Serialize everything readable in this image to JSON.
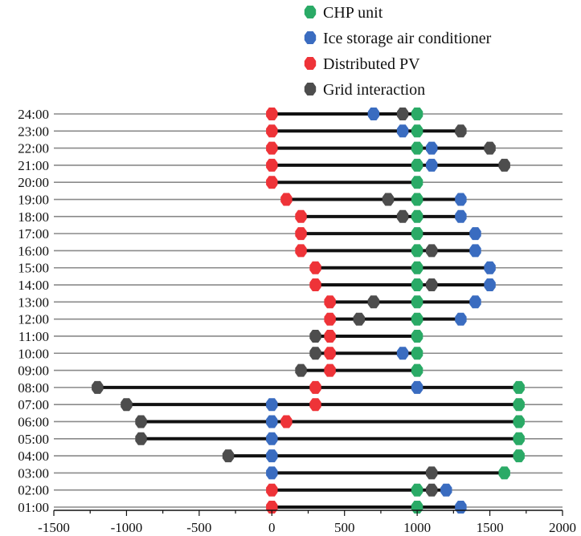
{
  "chart_data": {
    "type": "dumbbell",
    "title": "",
    "xlabel": "",
    "ylabel": "",
    "xlim": [
      -1500,
      2000
    ],
    "xticks": [
      -1500,
      -1000,
      -500,
      0,
      500,
      1000,
      1500,
      2000
    ],
    "grid": true,
    "legend_position": "top-center",
    "categories": [
      "24:00",
      "23:00",
      "22:00",
      "21:00",
      "20:00",
      "19:00",
      "18:00",
      "17:00",
      "16:00",
      "15:00",
      "14:00",
      "13:00",
      "12:00",
      "11:00",
      "10:00",
      "09:00",
      "08:00",
      "07:00",
      "06:00",
      "05:00",
      "04:00",
      "03:00",
      "02:00",
      "01:00"
    ],
    "series": [
      {
        "name": "CHP unit",
        "color": "#2aaa66",
        "values": [
          1000,
          1000,
          1000,
          1000,
          1000,
          1000,
          1000,
          1000,
          1000,
          1000,
          1000,
          1000,
          1000,
          1000,
          1000,
          1000,
          1700,
          1700,
          1700,
          1700,
          1700,
          1600,
          1000,
          1000
        ]
      },
      {
        "name": "Ice storage air conditioner",
        "color": "#3a6cc0",
        "values": [
          700,
          900,
          1100,
          1100,
          null,
          1300,
          1300,
          1400,
          1400,
          1500,
          1500,
          1400,
          1300,
          null,
          900,
          null,
          1000,
          0,
          0,
          0,
          0,
          0,
          1200,
          1300
        ]
      },
      {
        "name": "Distributed PV",
        "color": "#ee3338",
        "values": [
          0,
          0,
          0,
          0,
          0,
          100,
          200,
          200,
          200,
          300,
          300,
          400,
          400,
          400,
          400,
          400,
          300,
          300,
          100,
          null,
          null,
          null,
          0,
          0
        ]
      },
      {
        "name": "Grid interaction",
        "color": "#4d4d4d",
        "values": [
          900,
          1300,
          1500,
          1600,
          null,
          800,
          900,
          null,
          1100,
          null,
          1100,
          700,
          600,
          300,
          300,
          200,
          -1200,
          -1000,
          -900,
          -900,
          -300,
          1100,
          1100,
          null
        ]
      }
    ]
  }
}
